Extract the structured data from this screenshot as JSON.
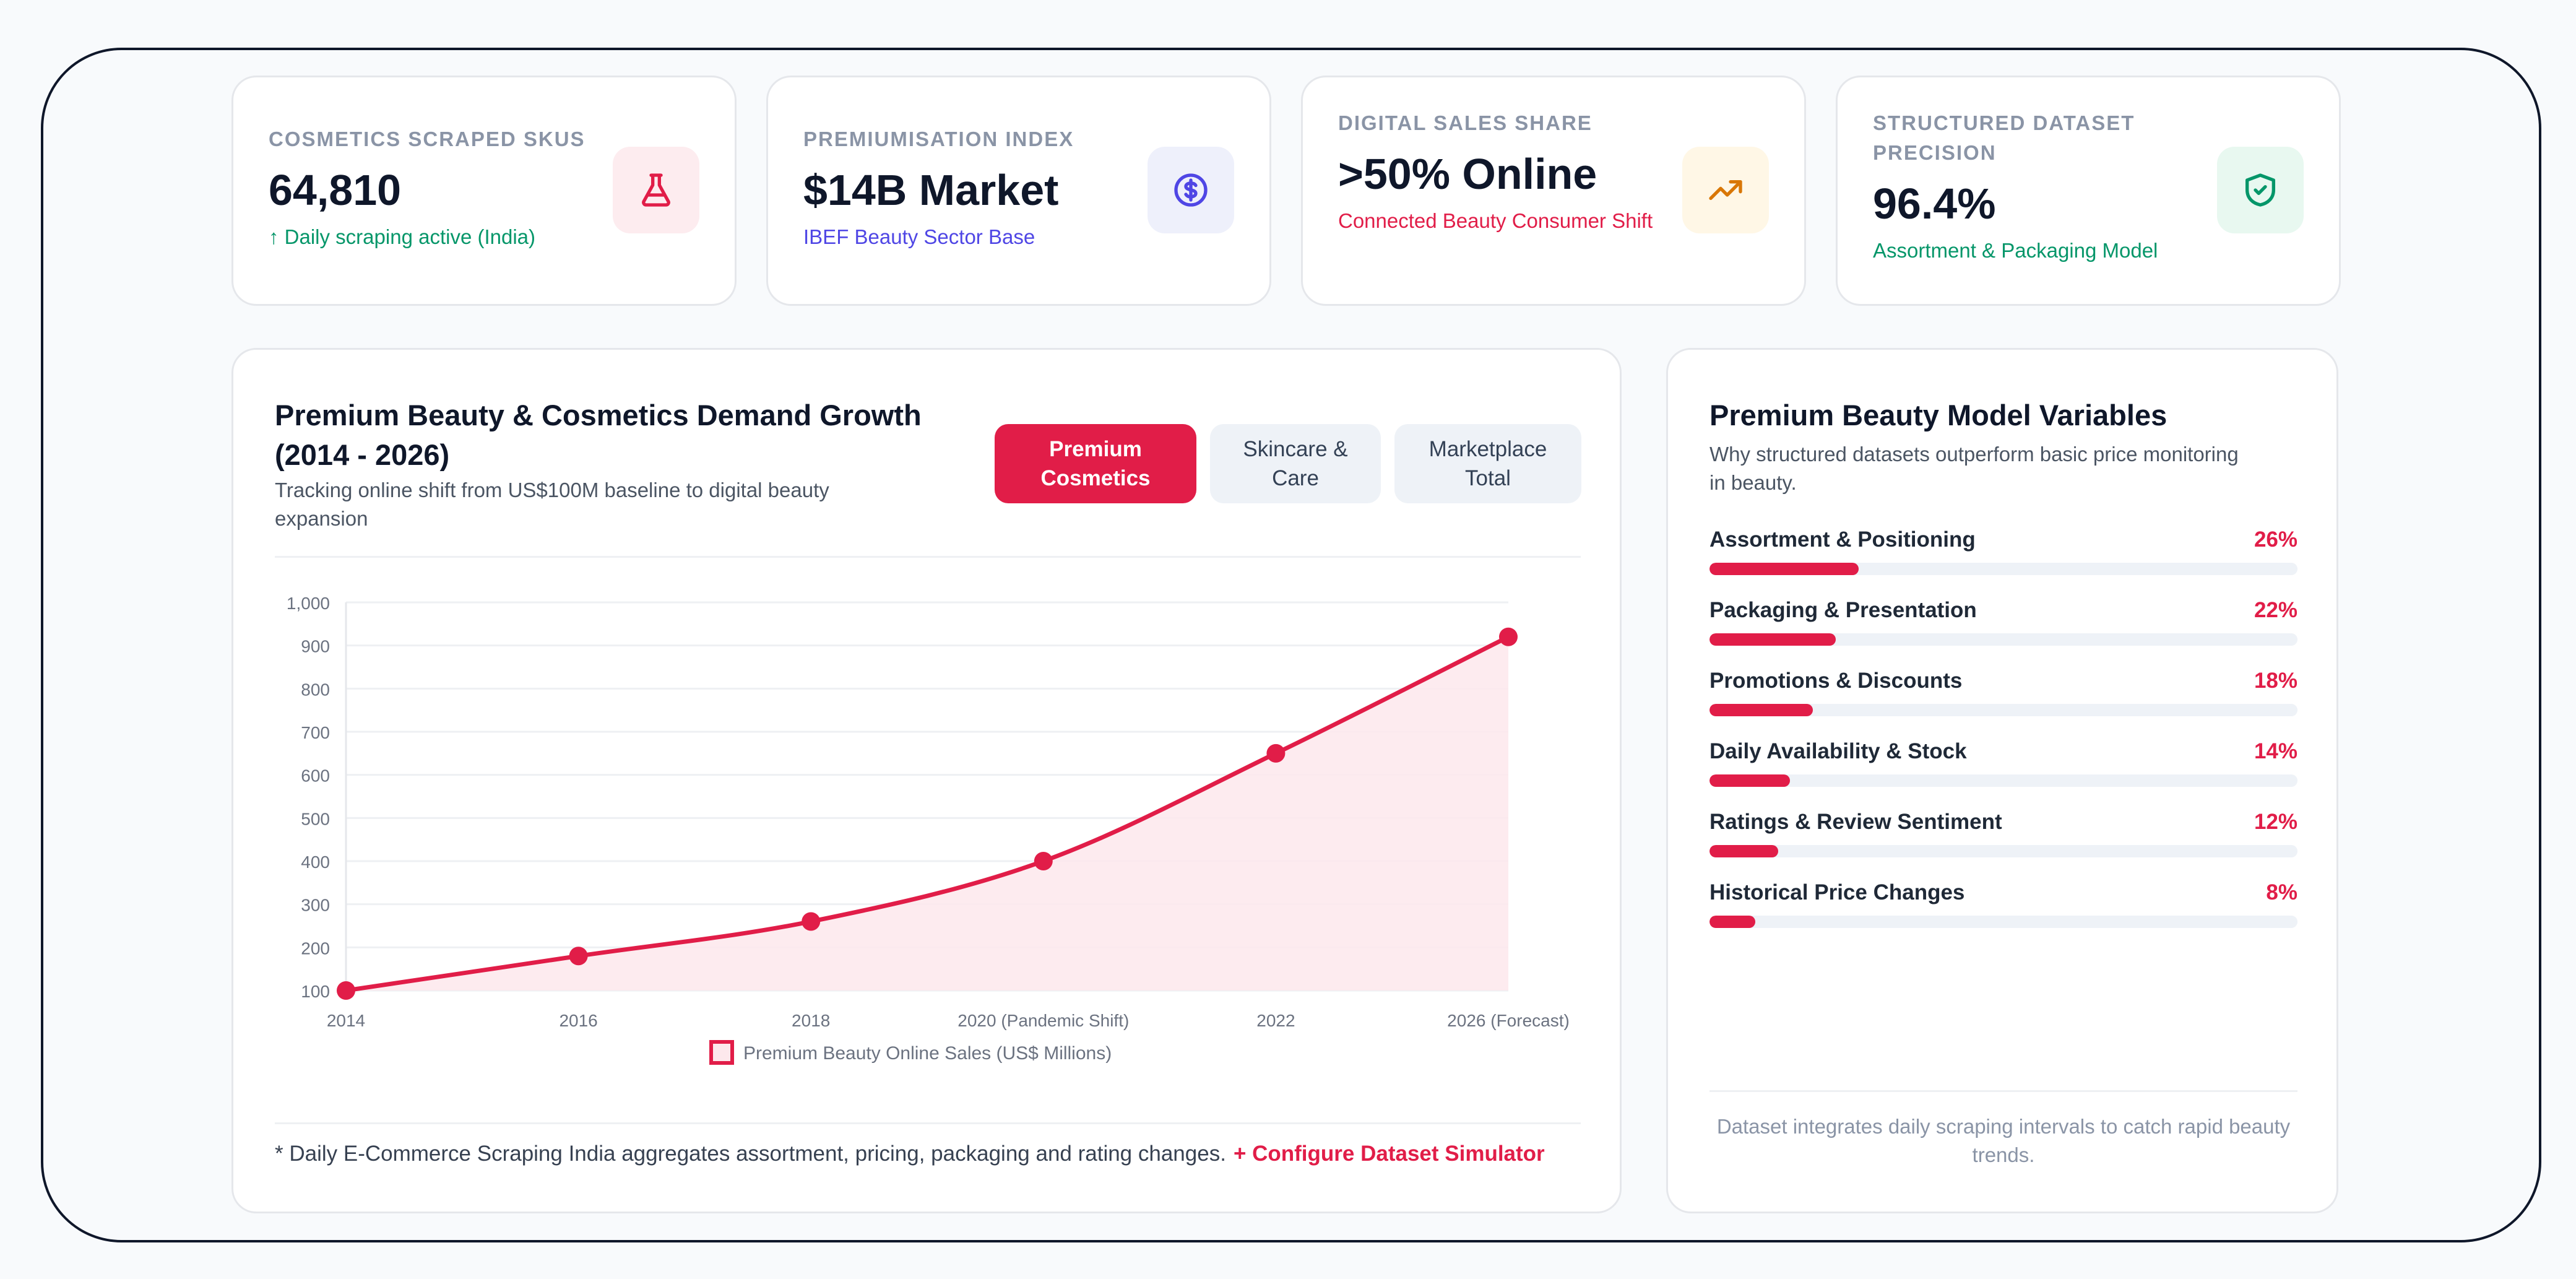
{
  "kpis": [
    {
      "label": "COSMETICS SCRAPED SKUS",
      "value": "64,810",
      "sub": "↑ Daily scraping active (India)",
      "icon": "flask-icon",
      "sub_color": "#059669",
      "icon_bg": "#fdecef",
      "icon_color": "#e11d48"
    },
    {
      "label": "PREMIUMISATION INDEX",
      "value": "$14B Market",
      "sub": "IBEF Beauty Sector Base",
      "icon": "dollar-circle-icon",
      "sub_color": "#4f46e5",
      "icon_bg": "#eef0fb",
      "icon_color": "#4f46e5"
    },
    {
      "label": "DIGITAL SALES SHARE",
      "value": ">50% Online",
      "sub": "Connected Beauty Consumer Shift",
      "icon": "trending-up-icon",
      "sub_color": "#e11d48",
      "icon_bg": "#fff7e6",
      "icon_color": "#d97706"
    },
    {
      "label": "STRUCTURED DATASET PRECISION",
      "value": "96.4%",
      "sub": "Assortment & Packaging Model",
      "icon": "shield-check-icon",
      "sub_color": "#059669",
      "icon_bg": "#e8f8f0",
      "icon_color": "#059669"
    }
  ],
  "chart": {
    "title": "Premium Beauty & Cosmetics Demand Growth (2014 - 2026)",
    "subtitle": "Tracking online shift from US$100M baseline to digital beauty expansion",
    "tabs": [
      "Premium Cosmetics",
      "Skincare & Care",
      "Marketplace Total"
    ],
    "active_tab": 0,
    "footnote": "* Daily E-Commerce Scraping India aggregates assortment, pricing, packaging and rating changes.",
    "footnote_link": "+ Configure Dataset Simulator"
  },
  "chart_data": {
    "type": "area",
    "x": [
      "2014",
      "2016",
      "2018",
      "2020 (Pandemic Shift)",
      "2022",
      "2026 (Forecast)"
    ],
    "series": [
      {
        "name": "Premium Beauty Online Sales (US$ Millions)",
        "values": [
          100,
          180,
          260,
          400,
          650,
          920
        ]
      }
    ],
    "ylim": [
      100,
      1000
    ],
    "yticks": [
      100,
      200,
      300,
      400,
      500,
      600,
      700,
      800,
      900,
      1000
    ],
    "ytick_labels": [
      "100",
      "200",
      "300",
      "400",
      "500",
      "600",
      "700",
      "800",
      "900",
      "1,000"
    ],
    "grid": true,
    "legend": "bottom",
    "color": "#e11d48"
  },
  "variables": {
    "title": "Premium Beauty Model Variables",
    "subtitle": "Why structured datasets outperform basic price monitoring in beauty.",
    "items": [
      {
        "label": "Assortment & Positioning",
        "pct": "26%",
        "value": 26
      },
      {
        "label": "Packaging & Presentation",
        "pct": "22%",
        "value": 22
      },
      {
        "label": "Promotions & Discounts",
        "pct": "18%",
        "value": 18
      },
      {
        "label": "Daily Availability & Stock",
        "pct": "14%",
        "value": 14
      },
      {
        "label": "Ratings & Review Sentiment",
        "pct": "12%",
        "value": 12
      },
      {
        "label": "Historical Price Changes",
        "pct": "8%",
        "value": 8
      }
    ],
    "footer": "Dataset integrates daily scraping intervals to catch rapid beauty trends."
  }
}
